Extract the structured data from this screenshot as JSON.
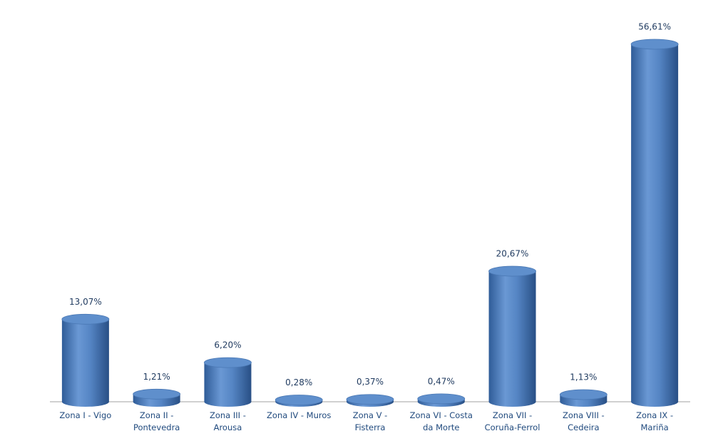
{
  "chart_data": {
    "type": "bar",
    "categories": [
      "Zona I - Vigo",
      "Zona II - Pontevedra",
      "Zona III - Arousa",
      "Zona IV - Muros",
      "Zona V - Fisterra",
      "Zona VI - Costa da Morte",
      "Zona VII - Coruña-Ferrol",
      "Zona VIII - Cedeira",
      "Zona IX - Mariña"
    ],
    "values": [
      13.07,
      1.21,
      6.2,
      0.28,
      0.37,
      0.47,
      20.67,
      1.13,
      56.61
    ],
    "value_labels": [
      "13,07%",
      "1,21%",
      "6,20%",
      "0,28%",
      "0,37%",
      "0,47%",
      "20,67%",
      "1,13%",
      "56,61%"
    ],
    "color": "#4f81bd"
  }
}
